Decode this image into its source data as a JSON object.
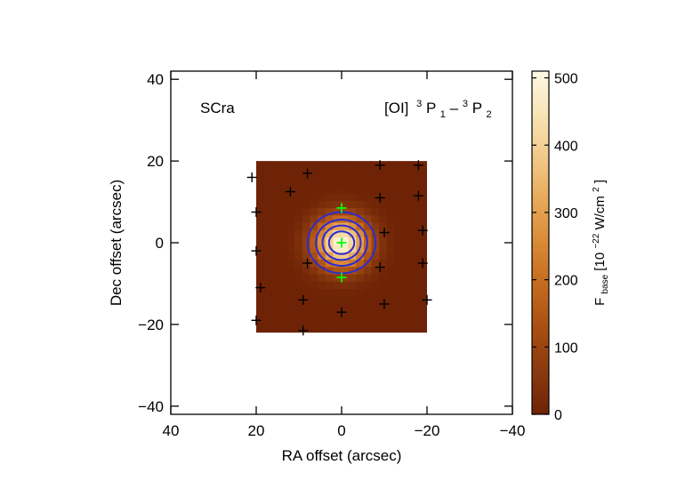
{
  "chart_data": {
    "type": "heatmap",
    "title": "",
    "object_label": "SCra",
    "line_label": {
      "species": "[OI]",
      "upper_sup": "3",
      "upper": "P",
      "upper_sub": "1",
      "dash": "–",
      "lower_sup": "3",
      "lower": "P",
      "lower_sub": "2"
    },
    "xlabel": "RA offset (arcsec)",
    "ylabel": "Dec offset (arcsec)",
    "xlim": [
      40,
      -40
    ],
    "ylim": [
      -42,
      42
    ],
    "xticks": [
      40,
      20,
      0,
      -20,
      -40
    ],
    "xtick_labels": [
      "40",
      "20",
      "0",
      "−20",
      "−40"
    ],
    "yticks": [
      -40,
      -20,
      0,
      20,
      40
    ],
    "ytick_labels": [
      "−40",
      "−20",
      "0",
      "20",
      "40"
    ],
    "map_extent": {
      "x": [
        20,
        -20
      ],
      "y": [
        -22,
        20
      ]
    },
    "source": {
      "peak": 500,
      "x0": 0,
      "y0": 0,
      "sigma": 4.3
    },
    "contour_levels": [
      100,
      200,
      300,
      400
    ],
    "contour_color": "#2b2bd6",
    "spaxel_marker_color": "#000000",
    "central_marker_color": "#00ff00",
    "spaxels": [
      [
        21,
        16
      ],
      [
        8,
        17
      ],
      [
        -9,
        19
      ],
      [
        -18,
        19
      ],
      [
        20,
        7.5
      ],
      [
        12,
        12.5
      ],
      [
        -9,
        11
      ],
      [
        -18,
        11.5
      ],
      [
        20,
        -2
      ],
      [
        8,
        -5
      ],
      [
        -10,
        2.5
      ],
      [
        -19,
        3
      ],
      [
        19,
        -11
      ],
      [
        9,
        -14
      ],
      [
        -9,
        -6
      ],
      [
        -19,
        -5
      ],
      [
        20,
        -19
      ],
      [
        9,
        -21.5
      ],
      [
        -10,
        -15
      ],
      [
        -20,
        -14
      ],
      [
        0,
        -17
      ]
    ],
    "central_spaxels": [
      [
        0,
        8.5
      ],
      [
        0,
        0
      ],
      [
        0,
        -8.5
      ]
    ],
    "colorbar": {
      "label_base": "F",
      "label_sub": "base",
      "label_unit_pre": "[10",
      "label_exp": "−22",
      "label_unit_mid": " W/cm",
      "label_exp2": "2",
      "label_unit_post": "]",
      "min": 0,
      "max": 510,
      "ticks": [
        0,
        100,
        200,
        300,
        400,
        500
      ],
      "tick_labels": [
        "0",
        "100",
        "200",
        "300",
        "400",
        "500"
      ],
      "colormap": [
        "#6e2306",
        "#8a3a0f",
        "#a84f12",
        "#c46a1e",
        "#d98a35",
        "#e8a95a",
        "#f2c98a",
        "#f8e4b6",
        "#fdf8e6"
      ]
    }
  }
}
